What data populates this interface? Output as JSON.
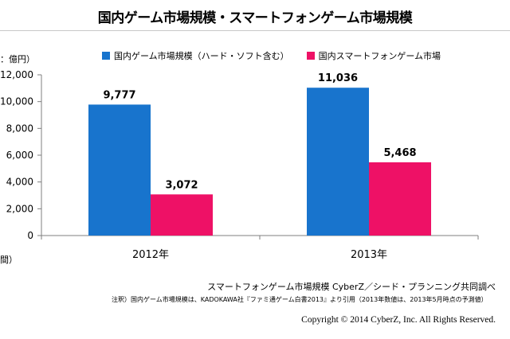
{
  "title": "国内ゲーム市場規模・スマートフォンゲーム市場規模",
  "unit_label": "：億円）",
  "period_label": "間）",
  "source": "スマートフォンゲーム市場規模 CyberZ／シード・プランニング共同調べ",
  "note": "注釈）国内ゲーム市場規模は、KADOKAWA社『ファミ通ゲーム白書2013』より引用（2013年数値は、2013年5月時点の予測値）",
  "copyright": "Copyright © 2014 CyberZ, Inc. All Rights Reserved.",
  "colors": {
    "series1": "#1874cd",
    "series2": "#ee1166",
    "axis": "#7f7f7f"
  },
  "chart_data": {
    "type": "bar",
    "categories": [
      "2012年",
      "2013年"
    ],
    "series": [
      {
        "name": "国内ゲーム市場規模（ハード・ソフト含む）",
        "values": [
          9777,
          11036
        ]
      },
      {
        "name": "国内スマートフォンゲーム市場",
        "values": [
          3072,
          5468
        ]
      }
    ],
    "data_labels": [
      [
        "9,777",
        "11,036"
      ],
      [
        "3,072",
        "5,468"
      ]
    ],
    "yticks": [
      "0",
      "2,000",
      "4,000",
      "6,000",
      "8,000",
      "10,000",
      "12,000"
    ],
    "ylim": [
      0,
      12000
    ],
    "grid": false,
    "legend_position": "top"
  }
}
